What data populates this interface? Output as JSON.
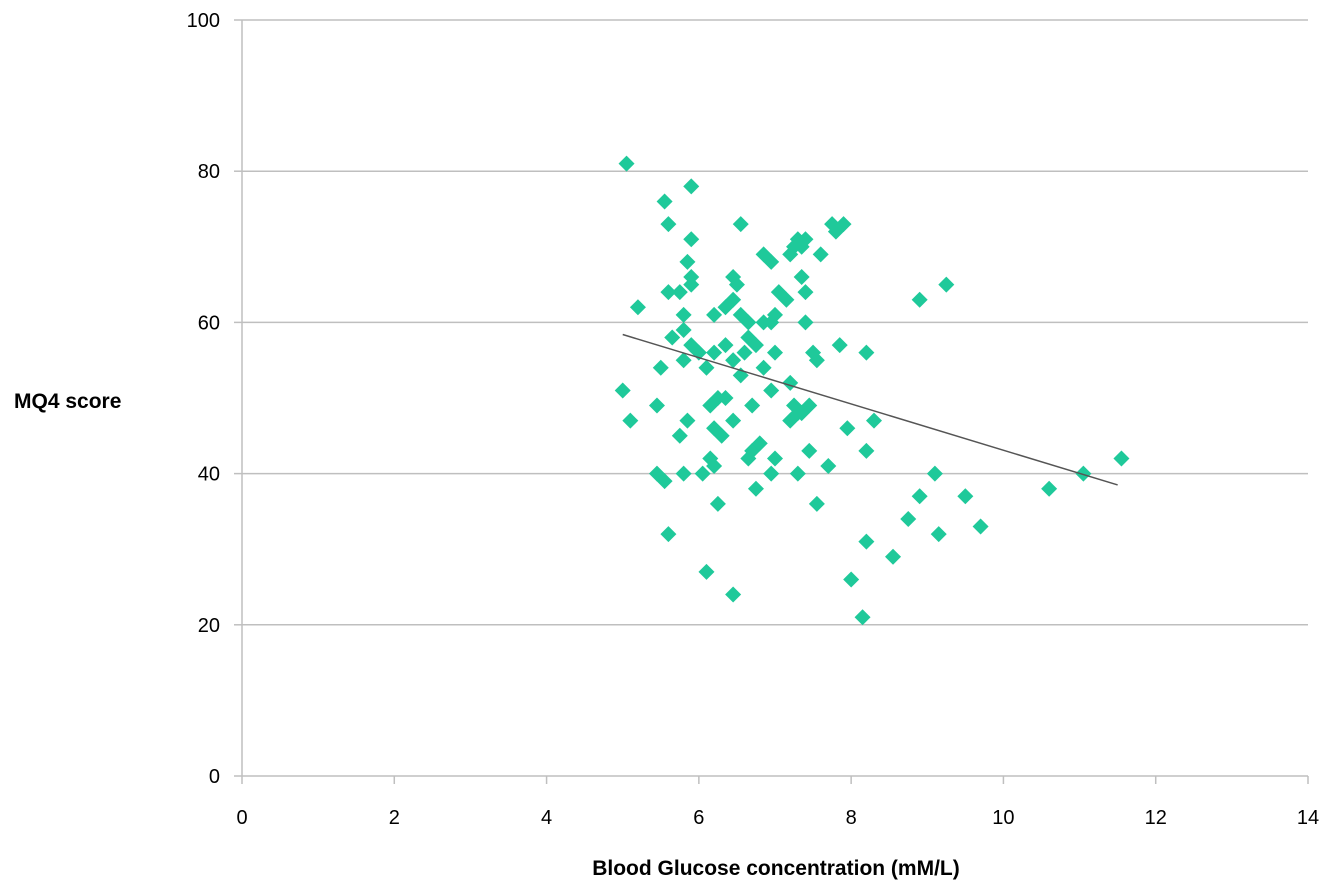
{
  "chart_data": {
    "type": "scatter",
    "title": "",
    "xlabel": "Blood Glucose concentration (mM/L)",
    "ylabel": "MQ4 score",
    "xlim": [
      0,
      14
    ],
    "ylim": [
      0,
      100
    ],
    "x_ticks": [
      "0",
      "2",
      "4",
      "6",
      "8",
      "10",
      "12",
      "14"
    ],
    "y_ticks": [
      "0",
      "20",
      "40",
      "60",
      "80",
      "100"
    ],
    "grid": "horizontal",
    "legend": "none",
    "colors": {
      "marker": "#1fc99a",
      "trendline": "#555555",
      "grid": "#bfbfbf",
      "axis": "#bfbfbf"
    },
    "marker": "diamond",
    "series": [
      {
        "points": [
          [
            5.05,
            81
          ],
          [
            5.55,
            76
          ],
          [
            5.9,
            78
          ],
          [
            5.6,
            73
          ],
          [
            5.9,
            71
          ],
          [
            6.55,
            73
          ],
          [
            5.85,
            68
          ],
          [
            5.9,
            66
          ],
          [
            5.9,
            65
          ],
          [
            5.6,
            64
          ],
          [
            5.75,
            64
          ],
          [
            5.2,
            62
          ],
          [
            5.8,
            61
          ],
          [
            5.8,
            59
          ],
          [
            5.65,
            58
          ],
          [
            5.9,
            57
          ],
          [
            6.0,
            56
          ],
          [
            5.5,
            54
          ],
          [
            5.8,
            55
          ],
          [
            5.0,
            51
          ],
          [
            5.45,
            49
          ],
          [
            5.1,
            47
          ],
          [
            5.85,
            47
          ],
          [
            5.75,
            45
          ],
          [
            5.45,
            40
          ],
          [
            5.55,
            39
          ],
          [
            5.8,
            40
          ],
          [
            6.05,
            40
          ],
          [
            5.6,
            32
          ],
          [
            6.1,
            27
          ],
          [
            6.45,
            24
          ],
          [
            6.2,
            41
          ],
          [
            6.25,
            36
          ],
          [
            6.15,
            42
          ],
          [
            6.2,
            46
          ],
          [
            6.3,
            45
          ],
          [
            6.45,
            47
          ],
          [
            6.25,
            50
          ],
          [
            6.15,
            49
          ],
          [
            6.35,
            50
          ],
          [
            6.1,
            54
          ],
          [
            6.2,
            56
          ],
          [
            6.35,
            57
          ],
          [
            6.45,
            55
          ],
          [
            6.2,
            61
          ],
          [
            6.35,
            62
          ],
          [
            6.45,
            63
          ],
          [
            6.45,
            66
          ],
          [
            6.5,
            65
          ],
          [
            6.55,
            61
          ],
          [
            6.65,
            60
          ],
          [
            6.6,
            56
          ],
          [
            6.55,
            53
          ],
          [
            6.65,
            58
          ],
          [
            6.75,
            57
          ],
          [
            6.85,
            60
          ],
          [
            6.7,
            49
          ],
          [
            6.7,
            43
          ],
          [
            6.65,
            42
          ],
          [
            6.8,
            44
          ],
          [
            6.75,
            38
          ],
          [
            6.95,
            40
          ],
          [
            7.0,
            42
          ],
          [
            6.95,
            51
          ],
          [
            7.0,
            56
          ],
          [
            6.85,
            54
          ],
          [
            6.95,
            60
          ],
          [
            7.0,
            61
          ],
          [
            7.05,
            64
          ],
          [
            6.85,
            69
          ],
          [
            6.95,
            68
          ],
          [
            7.15,
            63
          ],
          [
            7.25,
            70
          ],
          [
            7.3,
            71
          ],
          [
            7.35,
            70
          ],
          [
            7.4,
            71
          ],
          [
            7.2,
            69
          ],
          [
            7.35,
            66
          ],
          [
            7.4,
            64
          ],
          [
            7.4,
            60
          ],
          [
            7.2,
            52
          ],
          [
            7.25,
            49
          ],
          [
            7.3,
            48
          ],
          [
            7.35,
            48
          ],
          [
            7.45,
            49
          ],
          [
            7.2,
            47
          ],
          [
            7.45,
            43
          ],
          [
            7.3,
            40
          ],
          [
            7.55,
            36
          ],
          [
            7.5,
            56
          ],
          [
            7.55,
            55
          ],
          [
            7.6,
            69
          ],
          [
            7.7,
            41
          ],
          [
            7.75,
            73
          ],
          [
            7.8,
            72
          ],
          [
            7.9,
            73
          ],
          [
            7.85,
            57
          ],
          [
            7.95,
            46
          ],
          [
            8.0,
            26
          ],
          [
            8.15,
            21
          ],
          [
            8.2,
            31
          ],
          [
            8.2,
            43
          ],
          [
            8.2,
            56
          ],
          [
            8.3,
            47
          ],
          [
            8.55,
            29
          ],
          [
            8.75,
            34
          ],
          [
            8.9,
            37
          ],
          [
            8.9,
            63
          ],
          [
            9.1,
            40
          ],
          [
            9.15,
            32
          ],
          [
            9.25,
            65
          ],
          [
            9.5,
            37
          ],
          [
            9.7,
            33
          ],
          [
            10.6,
            38
          ],
          [
            11.05,
            40
          ],
          [
            11.55,
            42
          ]
        ]
      }
    ],
    "trendline": {
      "x": [
        5.0,
        11.5
      ],
      "y": [
        58.4,
        38.5
      ]
    }
  }
}
